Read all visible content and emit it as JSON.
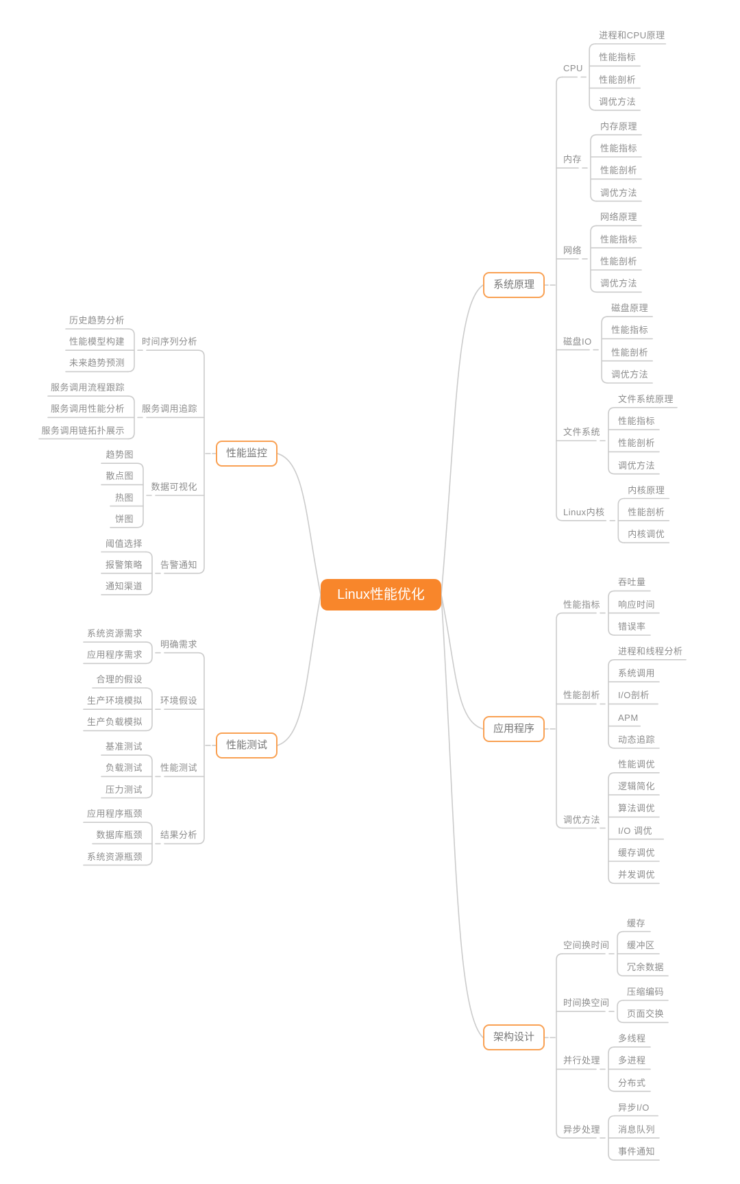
{
  "root": {
    "label": "Linux性能优化"
  },
  "branches": [
    {
      "label": "系统原理",
      "side": "right",
      "children": [
        {
          "label": "CPU",
          "children": [
            "进程和CPU原理",
            "性能指标",
            "性能剖析",
            "调优方法"
          ]
        },
        {
          "label": "内存",
          "children": [
            "内存原理",
            "性能指标",
            "性能剖析",
            "调优方法"
          ]
        },
        {
          "label": "网络",
          "children": [
            "网络原理",
            "性能指标",
            "性能剖析",
            "调优方法"
          ]
        },
        {
          "label": "磁盘IO",
          "children": [
            "磁盘原理",
            "性能指标",
            "性能剖析",
            "调优方法"
          ]
        },
        {
          "label": "文件系统",
          "children": [
            "文件系统原理",
            "性能指标",
            "性能剖析",
            "调优方法"
          ]
        },
        {
          "label": "Linux内核",
          "children": [
            "内核原理",
            "性能剖析",
            "内核调优"
          ]
        }
      ]
    },
    {
      "label": "应用程序",
      "side": "right",
      "children": [
        {
          "label": "性能指标",
          "children": [
            "吞吐量",
            "响应时间",
            "错误率"
          ]
        },
        {
          "label": "性能剖析",
          "children": [
            "进程和线程分析",
            "系统调用",
            "I/O剖析",
            "APM",
            "动态追踪"
          ]
        },
        {
          "label": "调优方法",
          "children": [
            "性能调优",
            "逻辑简化",
            "算法调优",
            "I/O 调优",
            "缓存调优",
            "并发调优"
          ]
        }
      ]
    },
    {
      "label": "架构设计",
      "side": "right",
      "children": [
        {
          "label": "空间换时间",
          "children": [
            "缓存",
            "缓冲区",
            "冗余数据"
          ]
        },
        {
          "label": "时间换空间",
          "children": [
            "压缩编码",
            "页面交换"
          ]
        },
        {
          "label": "并行处理",
          "children": [
            "多线程",
            "多进程",
            "分布式"
          ]
        },
        {
          "label": "异步处理",
          "children": [
            "异步I/O",
            "消息队列",
            "事件通知"
          ]
        }
      ]
    },
    {
      "label": "性能监控",
      "side": "left",
      "children": [
        {
          "label": "时间序列分析",
          "children": [
            "历史趋势分析",
            "性能模型构建",
            "未来趋势预测"
          ]
        },
        {
          "label": "服务调用追踪",
          "children": [
            "服务调用流程跟踪",
            "服务调用性能分析",
            "服务调用链拓扑展示"
          ]
        },
        {
          "label": "数据可视化",
          "children": [
            "趋势图",
            "散点图",
            "热图",
            "饼图"
          ]
        },
        {
          "label": "告警通知",
          "children": [
            "阈值选择",
            "报警策略",
            "通知渠道"
          ]
        }
      ]
    },
    {
      "label": "性能测试",
      "side": "left",
      "children": [
        {
          "label": "明确需求",
          "children": [
            "系统资源需求",
            "应用程序需求"
          ]
        },
        {
          "label": "环境假设",
          "children": [
            "合理的假设",
            "生产环境模拟",
            "生产负载模拟"
          ]
        },
        {
          "label": "性能测试",
          "children": [
            "基准测试",
            "负载测试",
            "压力测试"
          ]
        },
        {
          "label": "结果分析",
          "children": [
            "应用程序瓶颈",
            "数据库瓶颈",
            "系统资源瓶颈"
          ]
        }
      ]
    }
  ],
  "colors": {
    "accent": "#F8862B",
    "border": "#F9A052",
    "line": "#CBCBCB",
    "text": "#8C8C8C"
  }
}
